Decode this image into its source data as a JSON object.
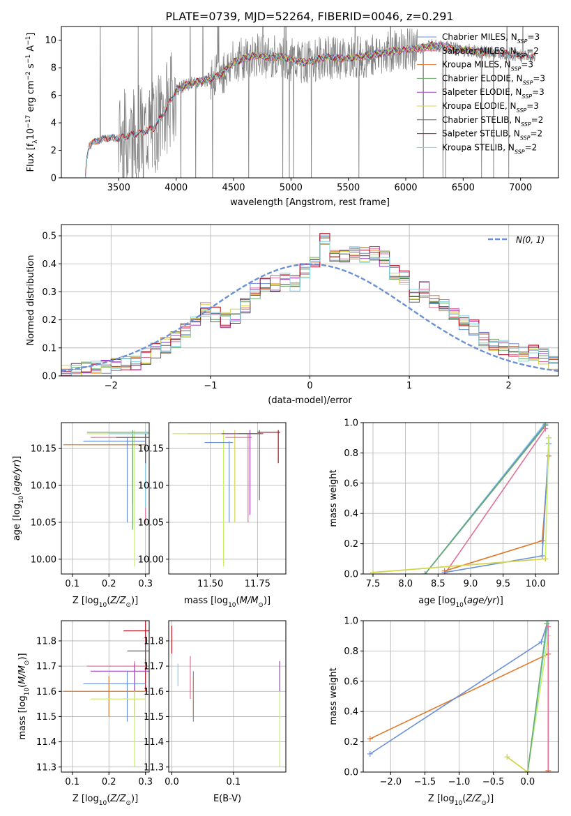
{
  "title": "PLATE=0739, MJD=52264, FIBERID=0046, z=0.291",
  "colors": {
    "Chabrier MILES": "#6b8fd6",
    "Salpeter MILES": "#e0709a",
    "Kroupa MILES": "#e07a2a",
    "Chabrier ELODIE": "#6aaa6a",
    "Salpeter ELODIE": "#a040c0",
    "Kroupa ELODIE": "#d4d44a",
    "Chabrier STELIB": "#606060",
    "Salpeter STELIB": "#b01020",
    "Kroupa STELIB": "#80d4e8",
    "data": "#808080",
    "extra_yellow": "#c8f060"
  },
  "chart_data": [
    {
      "id": "spectrum",
      "type": "line",
      "xlabel": "wavelength [Angstrom, rest frame]",
      "ylabel": "Flux [f_λ 10^-17 erg cm^-2 s^-1 A^-1]",
      "xlim": [
        3000,
        7330
      ],
      "ylim": [
        0,
        11
      ],
      "xticks": [
        3500,
        4000,
        4500,
        5000,
        5500,
        6000,
        6500,
        7000
      ],
      "yticks": [
        0,
        2,
        4,
        6,
        8,
        10
      ],
      "grid": false,
      "legend_position": "upper-right",
      "legend": [
        {
          "label": "Chabrier MILES, N",
          "sub": "SSP",
          "tail": "=3"
        },
        {
          "label": "Salpeter MILES, N",
          "sub": "SSP",
          "tail": "=2"
        },
        {
          "label": "Kroupa MILES, N",
          "sub": "SSP",
          "tail": "=3"
        },
        {
          "label": "Chabrier ELODIE, N",
          "sub": "SSP",
          "tail": "=3"
        },
        {
          "label": "Salpeter ELODIE, N",
          "sub": "SSP",
          "tail": "=3"
        },
        {
          "label": "Kroupa ELODIE, N",
          "sub": "SSP",
          "tail": "=3"
        },
        {
          "label": "Chabrier STELIB, N",
          "sub": "SSP",
          "tail": "=2"
        },
        {
          "label": "Salpeter STELIB, N",
          "sub": "SSP",
          "tail": "=2"
        },
        {
          "label": "Kroupa STELIB, N",
          "sub": "SSP",
          "tail": "=2"
        }
      ],
      "continuum": [
        [
          3210,
          0
        ],
        [
          3220,
          1.4
        ],
        [
          3240,
          2.3
        ],
        [
          3300,
          2.7
        ],
        [
          3400,
          2.9
        ],
        [
          3500,
          2.9
        ],
        [
          3600,
          3.1
        ],
        [
          3700,
          3.3
        ],
        [
          3800,
          3.6
        ],
        [
          3900,
          4.8
        ],
        [
          4000,
          6.4
        ],
        [
          4100,
          6.8
        ],
        [
          4200,
          7.0
        ],
        [
          4300,
          7.2
        ],
        [
          4400,
          7.6
        ],
        [
          4500,
          8.4
        ],
        [
          4600,
          8.7
        ],
        [
          4700,
          8.9
        ],
        [
          4800,
          8.8
        ],
        [
          4900,
          8.8
        ],
        [
          5000,
          8.6
        ],
        [
          5100,
          8.4
        ],
        [
          5200,
          8.5
        ],
        [
          5300,
          8.8
        ],
        [
          5400,
          8.7
        ],
        [
          5500,
          8.7
        ],
        [
          5600,
          8.8
        ],
        [
          5700,
          8.9
        ],
        [
          5800,
          9.1
        ],
        [
          5900,
          9.2
        ],
        [
          6000,
          9.3
        ],
        [
          6100,
          9.4
        ],
        [
          6200,
          9.6
        ],
        [
          6300,
          9.6
        ],
        [
          6400,
          9.4
        ],
        [
          6500,
          9.3
        ],
        [
          6600,
          9.2
        ],
        [
          6700,
          9.1
        ],
        [
          6800,
          9.1
        ],
        [
          6900,
          9.0
        ],
        [
          7000,
          8.9
        ],
        [
          7100,
          8.8
        ]
      ]
    },
    {
      "id": "residual-histogram",
      "type": "bar",
      "xlabel": "(data-model)/error",
      "ylabel": "Normed distribution",
      "xlim": [
        -2.5,
        2.5
      ],
      "ylim": [
        0,
        0.54
      ],
      "xticks": [
        -2,
        -1,
        0,
        1,
        2
      ],
      "yticks": [
        0.0,
        0.1,
        0.2,
        0.3,
        0.4,
        0.5
      ],
      "grid": true,
      "legend_position": "upper-right",
      "legend": [
        {
          "label": "N(0, 1)"
        }
      ],
      "bin_width": 0.1,
      "bin_start": -2.5,
      "values": [
        0.02,
        0.02,
        0.03,
        0.03,
        0.03,
        0.04,
        0.05,
        0.05,
        0.07,
        0.09,
        0.11,
        0.13,
        0.16,
        0.2,
        0.24,
        0.22,
        0.2,
        0.21,
        0.25,
        0.3,
        0.33,
        0.33,
        0.35,
        0.33,
        0.38,
        0.4,
        0.48,
        0.42,
        0.43,
        0.44,
        0.43,
        0.44,
        0.42,
        0.37,
        0.35,
        0.28,
        0.31,
        0.27,
        0.26,
        0.22,
        0.19,
        0.17,
        0.13,
        0.11,
        0.1,
        0.09,
        0.08,
        0.08,
        0.07,
        0.05
      ]
    },
    {
      "id": "age-vs-Z",
      "type": "scatter",
      "xlabel": "Z [log10(Z/Z_sun)]",
      "ylabel": "age [log10(age/yr)]",
      "xlim": [
        0.07,
        0.31
      ],
      "ylim": [
        9.98,
        10.185
      ],
      "xticks": [
        0.1,
        0.2,
        0.3
      ],
      "yticks": [
        10.0,
        10.05,
        10.1,
        10.15
      ],
      "grid": true,
      "points": [
        {
          "x": 0.27,
          "y": 10.17,
          "xl": 0.14,
          "xh": 0.31,
          "yl": 9.99,
          "yh": 10.175,
          "color": "extra_yellow"
        },
        {
          "x": 0.265,
          "y": 10.155,
          "xl": 0.075,
          "xh": 0.3,
          "yl": 10.075,
          "yh": 10.16,
          "color": "Kroupa MILES"
        },
        {
          "x": 0.25,
          "y": 10.16,
          "xl": 0.13,
          "xh": 0.3,
          "yl": 10.05,
          "yh": 10.165,
          "color": "Chabrier MILES"
        },
        {
          "x": 0.3,
          "y": 10.165,
          "xl": 0.15,
          "xh": 0.31,
          "yl": 10.05,
          "yh": 10.17,
          "color": "Salpeter MILES"
        },
        {
          "x": 0.265,
          "y": 10.172,
          "xl": 0.14,
          "xh": 0.31,
          "yl": 10.04,
          "yh": 10.175,
          "color": "Chabrier ELODIE"
        },
        {
          "x": 0.3,
          "y": 10.17,
          "xl": 0.2,
          "xh": 0.31,
          "yl": 10.07,
          "yh": 10.175,
          "color": "Kroupa STELIB"
        },
        {
          "x": 0.3,
          "y": 10.165,
          "xl": 0.22,
          "xh": 0.31,
          "yl": 10.13,
          "yh": 10.17,
          "color": "Chabrier STELIB"
        }
      ]
    },
    {
      "id": "age-vs-mass",
      "type": "scatter",
      "xlabel": "mass [log10(M/M_sun)]",
      "ylabel": "",
      "xlim": [
        11.28,
        11.9
      ],
      "ylim": [
        9.98,
        10.185
      ],
      "xticks": [
        11.5,
        11.75
      ],
      "xticklabels": [
        "11.50",
        "11.75"
      ],
      "yticks": [
        10.0,
        10.05,
        10.1,
        10.15
      ],
      "grid": true,
      "points": [
        {
          "x": 11.57,
          "y": 10.17,
          "xl": 11.3,
          "xh": 11.6,
          "yl": 9.99,
          "yh": 10.175,
          "color": "extra_yellow"
        },
        {
          "x": 11.6,
          "y": 10.158,
          "xl": 11.47,
          "xh": 11.62,
          "yl": 10.05,
          "yh": 10.16,
          "color": "Chabrier MILES"
        },
        {
          "x": 11.63,
          "y": 10.17,
          "xl": 11.38,
          "xh": 11.67,
          "yl": 10.05,
          "yh": 10.175,
          "color": "Kroupa ELODIE"
        },
        {
          "x": 11.7,
          "y": 10.165,
          "xl": 11.58,
          "xh": 11.72,
          "yl": 10.05,
          "yh": 10.17,
          "color": "Salpeter MILES"
        },
        {
          "x": 11.71,
          "y": 10.17,
          "xl": 11.56,
          "xh": 11.75,
          "yl": 10.06,
          "yh": 10.175,
          "color": "Salpeter ELODIE"
        },
        {
          "x": 11.76,
          "y": 10.17,
          "xl": 11.65,
          "xh": 11.78,
          "yl": 10.08,
          "yh": 10.175,
          "color": "Chabrier STELIB"
        },
        {
          "x": 11.86,
          "y": 10.172,
          "xl": 11.75,
          "xh": 11.87,
          "yl": 10.13,
          "yh": 10.175,
          "color": "Salpeter STELIB"
        }
      ]
    },
    {
      "id": "weight-vs-age",
      "type": "line",
      "xlabel": "age [log10(age/yr)]",
      "ylabel": "mass weight",
      "xlim": [
        7.35,
        10.35
      ],
      "ylim": [
        0,
        1.0
      ],
      "xticks": [
        7.5,
        8.0,
        8.5,
        9.0,
        9.5,
        10.0
      ],
      "yticks": [
        0.0,
        0.2,
        0.4,
        0.6,
        0.8,
        1.0
      ],
      "grid": true,
      "series": [
        {
          "color": "Kroupa STELIB",
          "x": [
            8.3,
            10.15
          ],
          "y": [
            0.0,
            1.0
          ]
        },
        {
          "color": "Chabrier MILES",
          "x": [
            8.3,
            10.15
          ],
          "y": [
            0.0,
            0.99
          ]
        },
        {
          "color": "Chabrier ELODIE",
          "x": [
            8.3,
            10.15
          ],
          "y": [
            0.0,
            0.98
          ]
        },
        {
          "color": "Salpeter MILES",
          "x": [
            8.6,
            10.15
          ],
          "y": [
            0.0,
            0.96
          ]
        },
        {
          "color": "Kroupa MILES",
          "x": [
            8.6,
            10.1,
            10.2,
            10.2
          ],
          "y": [
            0.02,
            0.22,
            0.78,
            0.9
          ]
        },
        {
          "color": "Chabrier MILES",
          "x": [
            8.6,
            10.1,
            10.2,
            10.2
          ],
          "y": [
            0.01,
            0.12,
            0.86,
            0.9
          ]
        },
        {
          "color": "extra_yellow",
          "x": [
            7.5,
            10.15,
            10.2
          ],
          "y": [
            0.01,
            0.1,
            0.9
          ]
        },
        {
          "color": "Kroupa ELODIE",
          "x": [
            7.5,
            10.15
          ],
          "y": [
            0.01,
            0.1
          ]
        }
      ]
    },
    {
      "id": "mass-vs-Z",
      "type": "scatter",
      "xlabel": "Z [log10(Z/Z_sun)]",
      "ylabel": "mass [log10(M/M_sun)]",
      "xlim": [
        0.07,
        0.31
      ],
      "ylim": [
        11.28,
        11.88
      ],
      "xticks": [
        0.1,
        0.2,
        0.3
      ],
      "yticks": [
        11.3,
        11.4,
        11.5,
        11.6,
        11.7,
        11.8
      ],
      "grid": true,
      "points": [
        {
          "x": 0.3,
          "y": 11.84,
          "xl": 0.24,
          "xh": 0.31,
          "yl": 11.6,
          "yh": 11.88,
          "color": "Salpeter STELIB"
        },
        {
          "x": 0.3,
          "y": 11.76,
          "xl": 0.25,
          "xh": 0.31,
          "yl": 11.7,
          "yh": 11.8,
          "color": "Chabrier STELIB"
        },
        {
          "x": 0.27,
          "y": 11.7,
          "xl": 0.14,
          "xh": 0.31,
          "yl": 11.6,
          "yh": 11.72,
          "color": "Salpeter MILES"
        },
        {
          "x": 0.27,
          "y": 11.68,
          "xl": 0.15,
          "xh": 0.31,
          "yl": 11.5,
          "yh": 11.71,
          "color": "Salpeter ELODIE"
        },
        {
          "x": 0.25,
          "y": 11.63,
          "xl": 0.13,
          "xh": 0.3,
          "yl": 11.48,
          "yh": 11.68,
          "color": "Chabrier MILES"
        },
        {
          "x": 0.2,
          "y": 11.6,
          "xl": 0.075,
          "xh": 0.3,
          "yl": 11.5,
          "yh": 11.66,
          "color": "Kroupa MILES"
        },
        {
          "x": 0.27,
          "y": 11.57,
          "xl": 0.15,
          "xh": 0.3,
          "yl": 11.3,
          "yh": 11.6,
          "color": "extra_yellow"
        }
      ]
    },
    {
      "id": "mass-vs-ebv",
      "type": "scatter",
      "xlabel": "E(B-V)",
      "ylabel": "",
      "xlim": [
        -0.005,
        0.185
      ],
      "ylim": [
        11.28,
        11.88
      ],
      "xticks": [
        0.0,
        0.1
      ],
      "yticks": [
        11.3,
        11.4,
        11.5,
        11.6,
        11.7,
        11.8
      ],
      "grid": true,
      "points": [
        {
          "x": 0.0,
          "y": 11.8,
          "yl": 11.75,
          "yh": 11.86,
          "color": "Salpeter STELIB"
        },
        {
          "x": 0.01,
          "y": 11.66,
          "yl": 11.62,
          "yh": 11.71,
          "color": "Kroupa STELIB"
        },
        {
          "x": 0.03,
          "y": 11.65,
          "yl": 11.57,
          "yh": 11.74,
          "color": "Salpeter MILES"
        },
        {
          "x": 0.035,
          "y": 11.62,
          "yl": 11.48,
          "yh": 11.68,
          "color": "Chabrier MILES"
        },
        {
          "x": 0.035,
          "y": 11.6,
          "yl": 11.5,
          "yh": 11.66,
          "color": "Kroupa MILES"
        },
        {
          "x": 0.175,
          "y": 11.66,
          "yl": 11.6,
          "yh": 11.72,
          "color": "Salpeter ELODIE"
        },
        {
          "x": 0.175,
          "y": 11.4,
          "yl": 11.3,
          "yh": 11.6,
          "color": "extra_yellow"
        }
      ]
    },
    {
      "id": "weight-vs-Z",
      "type": "line",
      "xlabel": "Z [log10(Z/Z_sun)]",
      "ylabel": "mass weight",
      "xlim": [
        -2.4,
        0.45
      ],
      "ylim": [
        0,
        1.0
      ],
      "xticks": [
        -2.0,
        -1.5,
        -1.0,
        -0.5,
        0.0
      ],
      "yticks": [
        0.0,
        0.2,
        0.4,
        0.6,
        0.8,
        1.0
      ],
      "grid": true,
      "series": [
        {
          "color": "Kroupa MILES",
          "x": [
            -2.3,
            0.3,
            0.3
          ],
          "y": [
            0.22,
            0.78,
            0.01
          ]
        },
        {
          "color": "Chabrier MILES",
          "x": [
            -2.3,
            0.2,
            0.3
          ],
          "y": [
            0.12,
            0.86,
            1.0
          ]
        },
        {
          "color": "extra_yellow",
          "x": [
            -0.3,
            0.0,
            0.3
          ],
          "y": [
            0.1,
            0.0,
            0.9
          ]
        },
        {
          "color": "Kroupa STELIB",
          "x": [
            0.0,
            0.3
          ],
          "y": [
            0.0,
            1.0
          ]
        },
        {
          "color": "Chabrier ELODIE",
          "x": [
            0.0,
            0.28
          ],
          "y": [
            0.0,
            0.98
          ]
        },
        {
          "color": "Kroupa ELODIE",
          "x": [
            -0.3,
            0.0
          ],
          "y": [
            0.1,
            0.0
          ]
        },
        {
          "color": "Salpeter MILES",
          "x": [
            0.3,
            0.3
          ],
          "y": [
            0.0,
            0.96
          ]
        }
      ]
    }
  ]
}
